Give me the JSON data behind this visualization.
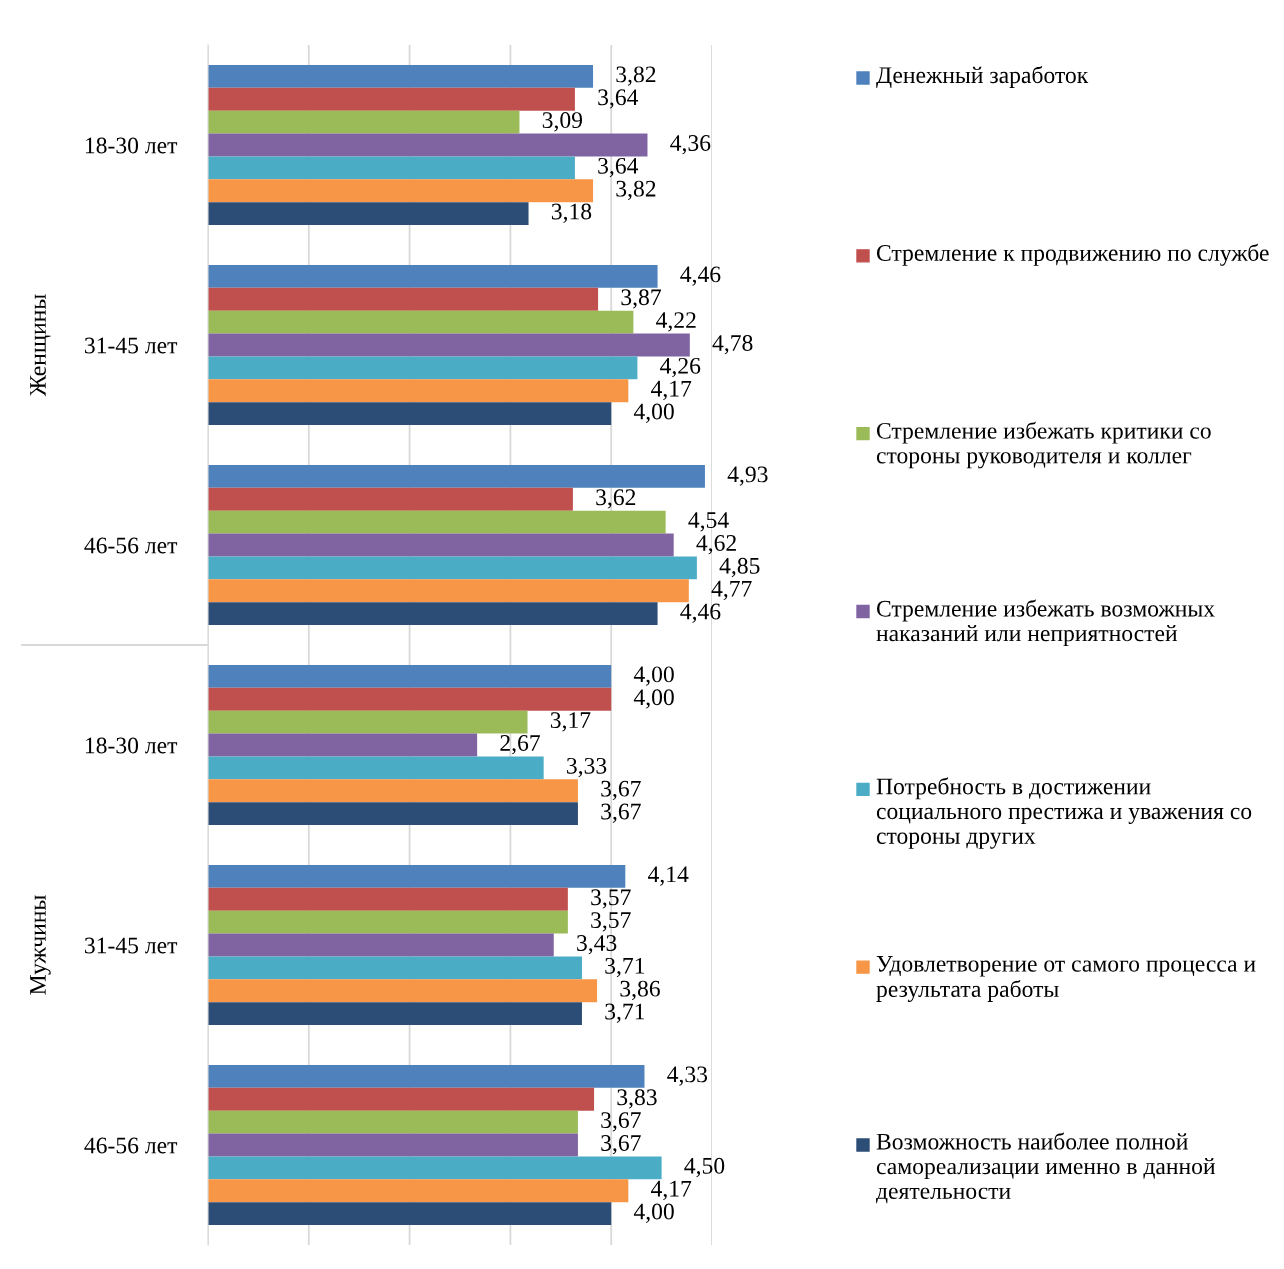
{
  "chart_data": {
    "type": "bar",
    "orientation": "horizontal",
    "categories": [
      "18-30 лет",
      "31-45 лет",
      "46-56 лет",
      "18-30 лет",
      "31-45 лет",
      "46-56 лет"
    ],
    "series": [
      {
        "name": "Денежный заработок",
        "color": "#4f81bd",
        "values": [
          3.82,
          4.46,
          4.93,
          4.0,
          4.14,
          4.33
        ],
        "value_labels": [
          "3,82",
          "4,46",
          "4,93",
          "4,00",
          "4,14",
          "4,33"
        ]
      },
      {
        "name": "Стремление к продвижению по службе",
        "color": "#c0504d",
        "values": [
          3.64,
          3.87,
          3.62,
          4.0,
          3.57,
          3.83
        ],
        "value_labels": [
          "3,64",
          "3,87",
          "3,62",
          "4,00",
          "3,57",
          "3,83"
        ]
      },
      {
        "name": "Стремление избежать критики со стороны руководителя и коллег",
        "color": "#9bbb59",
        "values": [
          3.09,
          4.22,
          4.54,
          3.17,
          3.57,
          3.67
        ],
        "value_labels": [
          "3,09",
          "4,22",
          "4,54",
          "3,17",
          "3,57",
          "3,67"
        ]
      },
      {
        "name": "Стремление избежать возможных наказаний или неприятностей",
        "color": "#8064a2",
        "values": [
          4.36,
          4.78,
          4.62,
          2.67,
          3.43,
          3.67
        ],
        "value_labels": [
          "4,36",
          "4,78",
          "4,62",
          "2,67",
          "3,43",
          "3,67"
        ]
      },
      {
        "name": "Потребность в достижении социального престижа и уважения со стороны других",
        "color": "#4bacc6",
        "values": [
          3.64,
          4.26,
          4.85,
          3.33,
          3.71,
          4.5
        ],
        "value_labels": [
          "3,64",
          "4,26",
          "4,85",
          "3,33",
          "3,71",
          "4,50"
        ]
      },
      {
        "name": "Удовлетворение от самого процесса и результата работы",
        "color": "#f79646",
        "values": [
          3.82,
          4.17,
          4.77,
          3.67,
          3.86,
          4.17
        ],
        "value_labels": [
          "3,82",
          "4,17",
          "4,77",
          "3,67",
          "3,86",
          "4,17"
        ]
      },
      {
        "name": "Возможность наиболее полной самореализации именно в данной деятельности",
        "color": "#2c4d75",
        "values": [
          3.18,
          4.0,
          4.46,
          3.67,
          3.71,
          4.0
        ],
        "value_labels": [
          "3,18",
          "4,00",
          "4,46",
          "3,67",
          "3,71",
          "4,00"
        ]
      }
    ],
    "annotations": [
      "Женщины",
      "Мужчины"
    ],
    "xlim": [
      0,
      5
    ],
    "xticks": [
      {
        "value": 0,
        "label": null
      },
      {
        "value": 1,
        "label": null
      },
      {
        "value": 2,
        "label": null
      },
      {
        "value": 3,
        "label": null
      },
      {
        "value": 4,
        "label": null
      },
      {
        "value": 5,
        "label": null
      }
    ],
    "tick_labels": "y",
    "grid": "x",
    "legend": "right"
  }
}
